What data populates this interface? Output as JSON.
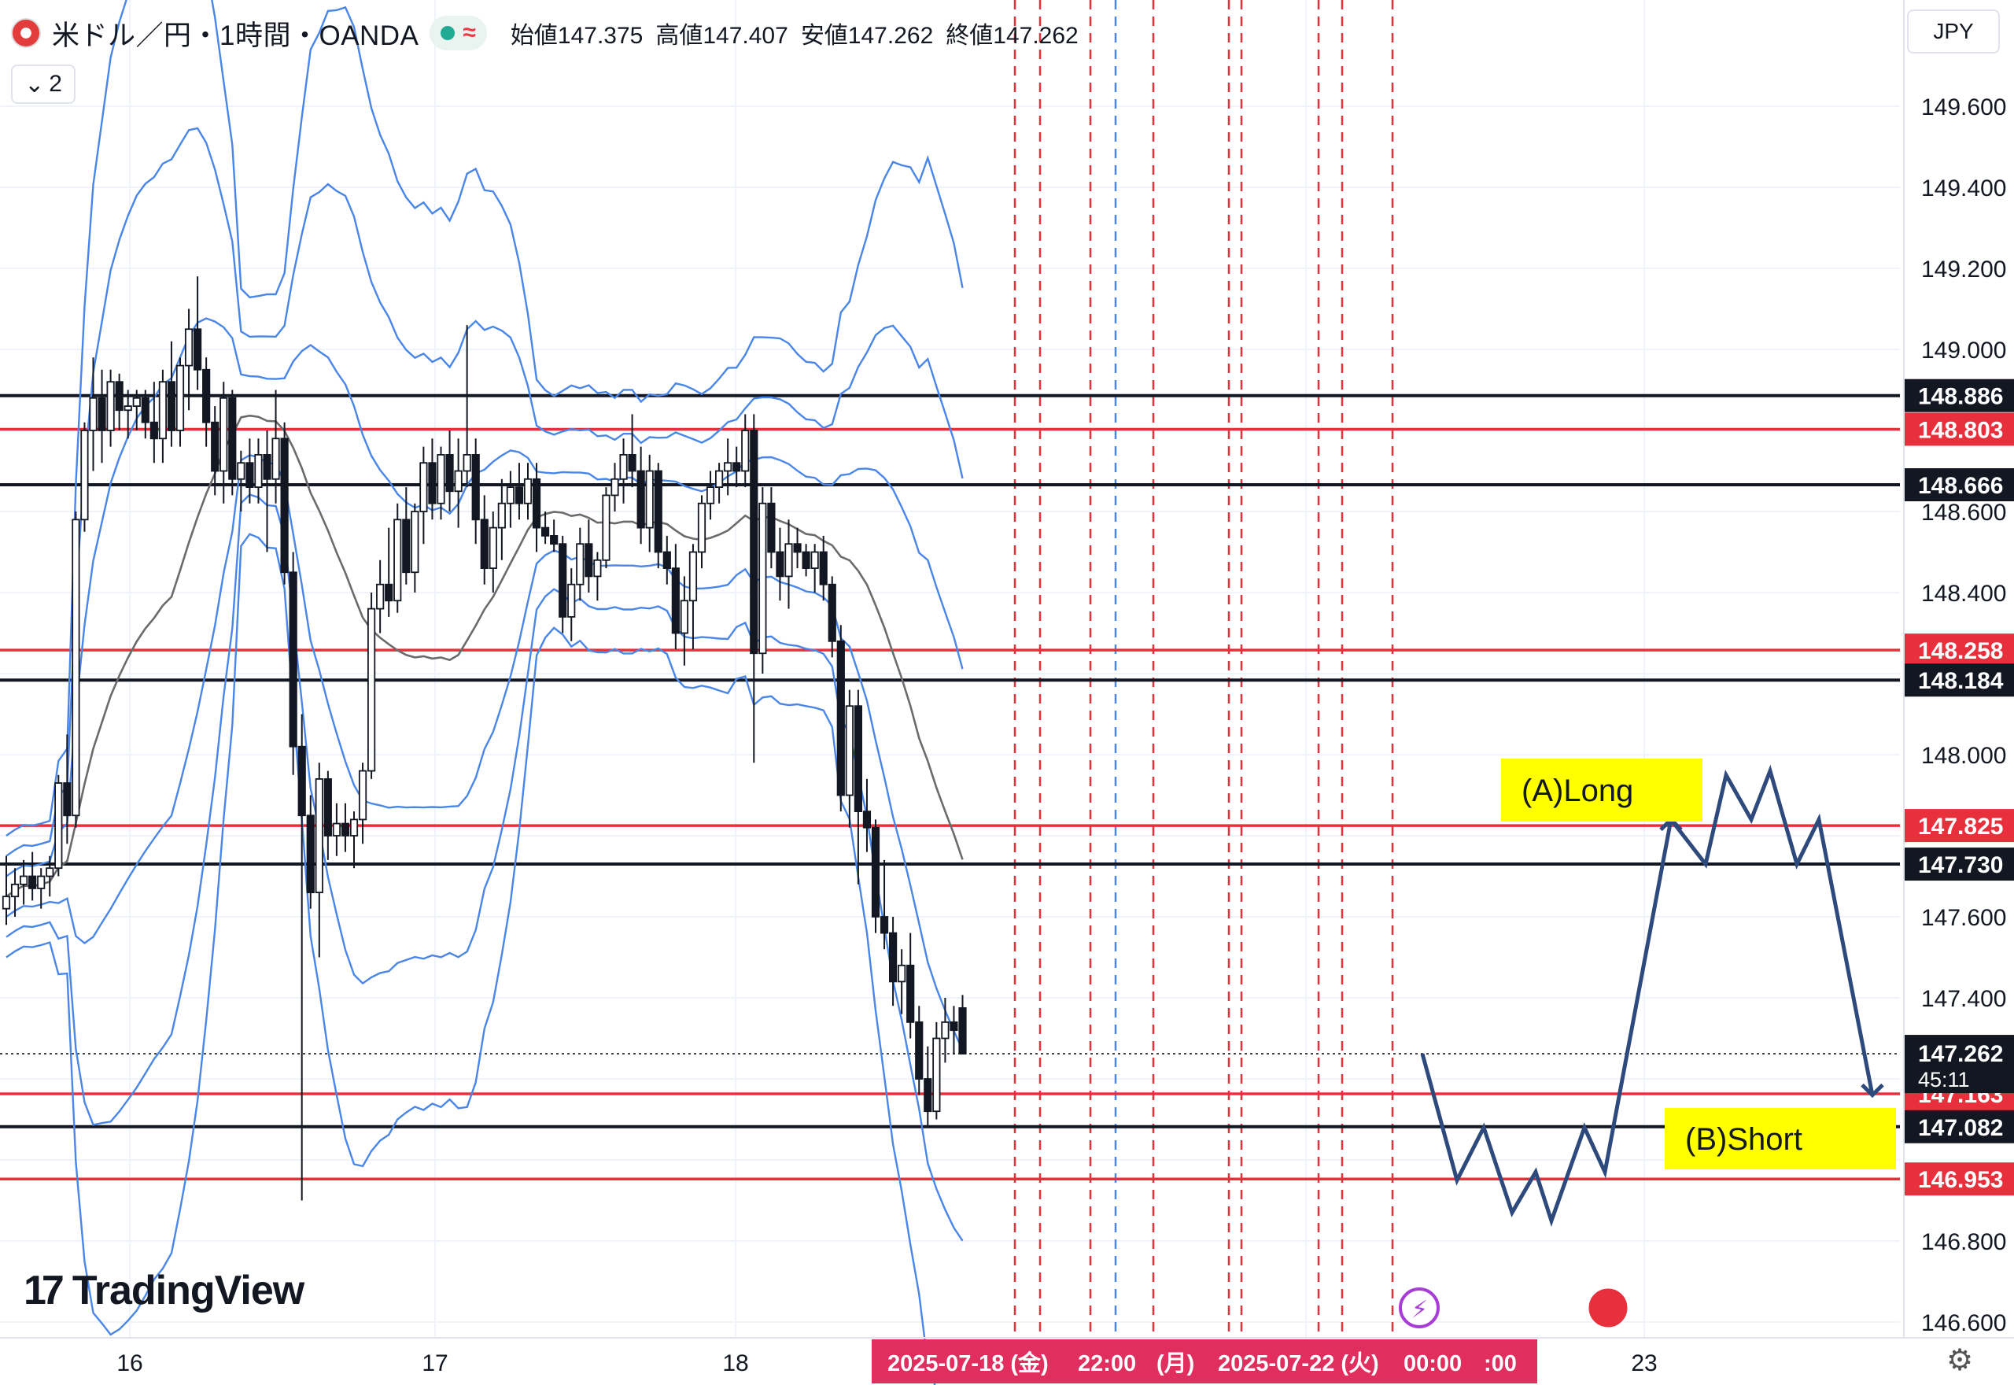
{
  "header": {
    "symbol": "米ドル／円・1時間・OANDA",
    "status_icon": "live-dot-icon",
    "wave_icon": "≈",
    "ohlc": {
      "open": "始値147.375",
      "high": "高値147.407",
      "low": "安値147.262",
      "close": "終値147.262"
    },
    "collapse_label": "2"
  },
  "currency": "JPY",
  "logo": {
    "text": "TradingView",
    "mark": "17"
  },
  "colors": {
    "background": "#ffffff",
    "grid": "#f0f3fa",
    "candle_up_fill": "#ffffff",
    "candle_down_fill": "#131722",
    "candle_outline": "#131722",
    "bollinger": "#4a86e8",
    "ma": "#6b6b6b",
    "red_level": "#e8303d",
    "black_level": "#131722",
    "session_line": "#e8303d",
    "session_line_blue": "#4a86e8",
    "projection": "#2e4a7d",
    "annotation_bg": "#ffff00",
    "axis_highlight": "#e02f5e"
  },
  "chart_data": {
    "type": "candlestick",
    "title": "",
    "xlabel": "",
    "ylabel": "",
    "ylim": [
      146.56,
      149.73
    ],
    "x_ticks": [
      "16",
      "17",
      "18",
      "23"
    ],
    "y_ticks": [
      "149.600",
      "149.400",
      "149.200",
      "149.000",
      "148.600",
      "148.400",
      "148.000",
      "147.600",
      "147.400",
      "146.800",
      "146.600"
    ],
    "horizontal_levels": [
      {
        "price": 148.886,
        "label": "148.886",
        "color": "black"
      },
      {
        "price": 148.803,
        "label": "148.803",
        "color": "red"
      },
      {
        "price": 148.666,
        "label": "148.666",
        "color": "black"
      },
      {
        "price": 148.258,
        "label": "148.258",
        "color": "red"
      },
      {
        "price": 148.184,
        "label": "148.184",
        "color": "black"
      },
      {
        "price": 147.825,
        "label": "147.825",
        "color": "red"
      },
      {
        "price": 147.73,
        "label": "147.730",
        "color": "black"
      },
      {
        "price": 147.163,
        "label": "147.163",
        "color": "red"
      },
      {
        "price": 147.082,
        "label": "147.082",
        "color": "black"
      },
      {
        "price": 146.953,
        "label": "146.953",
        "color": "red"
      }
    ],
    "last_price": {
      "price": 147.262,
      "label": "147.262",
      "countdown": "45:11"
    },
    "candles": [
      [
        147.62,
        147.75,
        147.58,
        147.65
      ],
      [
        147.65,
        147.72,
        147.6,
        147.68
      ],
      [
        147.68,
        147.74,
        147.63,
        147.7
      ],
      [
        147.7,
        147.76,
        147.64,
        147.67
      ],
      [
        147.67,
        147.72,
        147.62,
        147.7
      ],
      [
        147.7,
        147.75,
        147.65,
        147.72
      ],
      [
        147.72,
        147.95,
        147.7,
        147.93
      ],
      [
        147.93,
        148.05,
        147.78,
        147.85
      ],
      [
        147.85,
        148.6,
        147.82,
        148.58
      ],
      [
        148.58,
        148.82,
        148.55,
        148.8
      ],
      [
        148.8,
        148.98,
        148.7,
        148.88
      ],
      [
        148.88,
        148.95,
        148.72,
        148.8
      ],
      [
        148.8,
        148.95,
        148.76,
        148.92
      ],
      [
        148.92,
        148.94,
        148.8,
        148.85
      ],
      [
        148.85,
        148.9,
        148.78,
        148.86
      ],
      [
        148.86,
        148.9,
        148.8,
        148.88
      ],
      [
        148.88,
        148.9,
        148.78,
        148.82
      ],
      [
        148.82,
        148.92,
        148.72,
        148.78
      ],
      [
        148.78,
        148.95,
        148.72,
        148.92
      ],
      [
        148.92,
        149.02,
        148.76,
        148.8
      ],
      [
        148.8,
        148.98,
        148.76,
        148.96
      ],
      [
        148.96,
        149.1,
        148.85,
        149.05
      ],
      [
        149.05,
        149.18,
        148.9,
        148.95
      ],
      [
        148.95,
        148.98,
        148.76,
        148.82
      ],
      [
        148.82,
        148.86,
        148.64,
        148.7
      ],
      [
        148.7,
        148.92,
        148.62,
        148.88
      ],
      [
        148.88,
        148.9,
        148.64,
        148.68
      ],
      [
        148.68,
        148.75,
        148.6,
        148.72
      ],
      [
        148.72,
        148.78,
        148.62,
        148.66
      ],
      [
        148.66,
        148.78,
        148.62,
        148.74
      ],
      [
        148.74,
        148.8,
        148.5,
        148.68
      ],
      [
        148.68,
        148.9,
        148.62,
        148.78
      ],
      [
        148.78,
        148.82,
        148.42,
        148.45
      ],
      [
        148.45,
        148.5,
        147.95,
        148.02
      ],
      [
        148.02,
        148.1,
        146.9,
        147.85
      ],
      [
        147.85,
        147.9,
        147.62,
        147.66
      ],
      [
        147.66,
        147.98,
        147.5,
        147.94
      ],
      [
        147.94,
        147.96,
        147.74,
        147.8
      ],
      [
        147.8,
        147.88,
        147.75,
        147.83
      ],
      [
        147.83,
        147.88,
        147.76,
        147.8
      ],
      [
        147.8,
        147.86,
        147.72,
        147.84
      ],
      [
        147.84,
        147.98,
        147.78,
        147.96
      ],
      [
        147.96,
        148.4,
        147.94,
        148.36
      ],
      [
        148.36,
        148.48,
        148.3,
        148.42
      ],
      [
        148.42,
        148.56,
        148.34,
        148.38
      ],
      [
        148.38,
        148.62,
        148.35,
        148.58
      ],
      [
        148.58,
        148.66,
        148.42,
        148.45
      ],
      [
        148.45,
        148.62,
        148.4,
        148.6
      ],
      [
        148.6,
        148.76,
        148.52,
        148.72
      ],
      [
        148.72,
        148.78,
        148.58,
        148.62
      ],
      [
        148.62,
        148.76,
        148.58,
        148.74
      ],
      [
        148.74,
        148.8,
        148.6,
        148.65
      ],
      [
        148.65,
        148.78,
        148.56,
        148.7
      ],
      [
        148.7,
        149.06,
        148.66,
        148.74
      ],
      [
        148.74,
        148.78,
        148.52,
        148.58
      ],
      [
        148.58,
        148.64,
        148.42,
        148.46
      ],
      [
        148.46,
        148.6,
        148.4,
        148.56
      ],
      [
        148.56,
        148.68,
        148.48,
        148.62
      ],
      [
        148.62,
        148.7,
        148.56,
        148.66
      ],
      [
        148.66,
        148.72,
        148.58,
        148.62
      ],
      [
        148.62,
        148.72,
        148.58,
        148.68
      ],
      [
        148.68,
        148.72,
        148.5,
        148.56
      ],
      [
        148.56,
        148.6,
        148.52,
        148.54
      ],
      [
        148.54,
        148.58,
        148.5,
        148.52
      ],
      [
        148.52,
        148.54,
        148.3,
        148.34
      ],
      [
        148.34,
        148.46,
        148.28,
        148.42
      ],
      [
        148.42,
        148.56,
        148.38,
        148.52
      ],
      [
        148.52,
        148.58,
        148.4,
        148.44
      ],
      [
        148.44,
        148.5,
        148.38,
        148.48
      ],
      [
        148.48,
        148.66,
        148.46,
        148.64
      ],
      [
        148.64,
        148.72,
        148.6,
        148.68
      ],
      [
        148.68,
        148.78,
        148.62,
        148.74
      ],
      [
        148.74,
        148.84,
        148.66,
        148.7
      ],
      [
        148.7,
        148.76,
        148.52,
        148.56
      ],
      [
        148.56,
        148.74,
        148.5,
        148.7
      ],
      [
        148.7,
        148.72,
        148.46,
        148.5
      ],
      [
        148.5,
        148.54,
        148.42,
        148.46
      ],
      [
        148.46,
        148.52,
        148.26,
        148.3
      ],
      [
        148.3,
        148.44,
        148.22,
        148.38
      ],
      [
        148.38,
        148.52,
        148.26,
        148.5
      ],
      [
        148.5,
        148.64,
        148.46,
        148.62
      ],
      [
        148.62,
        148.7,
        148.58,
        148.66
      ],
      [
        148.66,
        148.72,
        148.62,
        148.7
      ],
      [
        148.7,
        148.78,
        148.64,
        148.72
      ],
      [
        148.72,
        148.76,
        148.66,
        148.7
      ],
      [
        148.7,
        148.84,
        148.66,
        148.8
      ],
      [
        148.8,
        148.84,
        147.98,
        148.25
      ],
      [
        148.25,
        148.66,
        148.2,
        148.62
      ],
      [
        148.62,
        148.66,
        148.46,
        148.5
      ],
      [
        148.5,
        148.56,
        148.38,
        148.44
      ],
      [
        148.44,
        148.58,
        148.36,
        148.52
      ],
      [
        148.52,
        148.56,
        148.46,
        148.5
      ],
      [
        148.5,
        148.52,
        148.44,
        148.46
      ],
      [
        148.46,
        148.52,
        148.4,
        148.5
      ],
      [
        148.5,
        148.54,
        148.38,
        148.42
      ],
      [
        148.42,
        148.44,
        148.24,
        148.28
      ],
      [
        148.28,
        148.32,
        147.86,
        147.9
      ],
      [
        147.9,
        148.16,
        147.82,
        148.12
      ],
      [
        148.12,
        148.16,
        147.68,
        147.86
      ],
      [
        147.86,
        147.94,
        147.76,
        147.82
      ],
      [
        147.82,
        147.84,
        147.56,
        147.6
      ],
      [
        147.6,
        147.74,
        147.52,
        147.56
      ],
      [
        147.56,
        147.6,
        147.38,
        147.44
      ],
      [
        147.44,
        147.52,
        147.36,
        147.48
      ],
      [
        147.48,
        147.56,
        147.3,
        147.34
      ],
      [
        147.34,
        147.38,
        147.16,
        147.2
      ],
      [
        147.2,
        147.28,
        147.08,
        147.12
      ],
      [
        147.12,
        147.34,
        147.1,
        147.3
      ],
      [
        147.3,
        147.4,
        147.24,
        147.34
      ],
      [
        147.34,
        147.38,
        147.26,
        147.32
      ],
      [
        147.375,
        147.407,
        147.262,
        147.262
      ]
    ],
    "session_lines": [
      "2025-07-18 (金)",
      "22:00",
      "(月)",
      "2025-07-22 (火)",
      "00:00",
      ":00"
    ],
    "annotations": [
      {
        "label": "(A)Long"
      },
      {
        "label": "(B)Short"
      }
    ],
    "projection_path": [
      [
        0,
        147.262
      ],
      [
        1,
        146.95
      ],
      [
        2,
        147.08
      ],
      [
        3,
        146.87
      ],
      [
        4,
        146.97
      ],
      [
        5,
        146.85
      ],
      [
        6,
        147.08
      ],
      [
        7,
        146.97
      ],
      [
        8,
        147.84
      ],
      [
        9,
        147.73
      ],
      [
        10,
        147.95
      ],
      [
        11,
        147.84
      ],
      [
        12,
        147.96
      ],
      [
        13,
        147.73
      ],
      [
        14,
        147.84
      ],
      [
        15,
        147.16
      ]
    ]
  }
}
